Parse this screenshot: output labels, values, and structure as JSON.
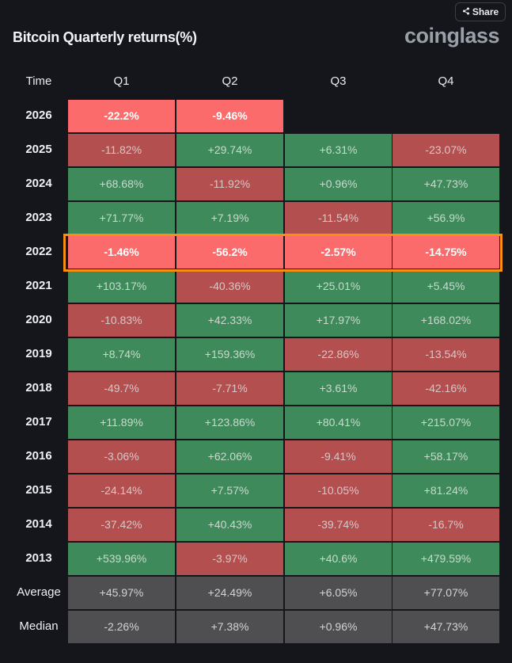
{
  "share": {
    "label": "Share"
  },
  "title": "Bitcoin Quarterly returns(%)",
  "brand": "coinglass",
  "header": [
    "Time",
    "Q1",
    "Q2",
    "Q3",
    "Q4"
  ],
  "rows": [
    {
      "label": "2026",
      "cells": [
        {
          "v": "-22.2%",
          "t": "cur-neg"
        },
        {
          "v": "-9.46%",
          "t": "cur-neg"
        },
        null,
        null
      ]
    },
    {
      "label": "2025",
      "cells": [
        {
          "v": "-11.82%",
          "t": "neg"
        },
        {
          "v": "+29.74%",
          "t": "pos"
        },
        {
          "v": "+6.31%",
          "t": "pos"
        },
        {
          "v": "-23.07%",
          "t": "neg"
        }
      ]
    },
    {
      "label": "2024",
      "cells": [
        {
          "v": "+68.68%",
          "t": "pos"
        },
        {
          "v": "-11.92%",
          "t": "neg"
        },
        {
          "v": "+0.96%",
          "t": "pos"
        },
        {
          "v": "+47.73%",
          "t": "pos"
        }
      ]
    },
    {
      "label": "2023",
      "cells": [
        {
          "v": "+71.77%",
          "t": "pos"
        },
        {
          "v": "+7.19%",
          "t": "pos"
        },
        {
          "v": "-11.54%",
          "t": "neg"
        },
        {
          "v": "+56.9%",
          "t": "pos"
        }
      ]
    },
    {
      "label": "2022",
      "cells": [
        {
          "v": "-1.46%",
          "t": "cur-neg"
        },
        {
          "v": "-56.2%",
          "t": "cur-neg"
        },
        {
          "v": "-2.57%",
          "t": "cur-neg"
        },
        {
          "v": "-14.75%",
          "t": "cur-neg"
        }
      ]
    },
    {
      "label": "2021",
      "cells": [
        {
          "v": "+103.17%",
          "t": "pos"
        },
        {
          "v": "-40.36%",
          "t": "neg"
        },
        {
          "v": "+25.01%",
          "t": "pos"
        },
        {
          "v": "+5.45%",
          "t": "pos"
        }
      ]
    },
    {
      "label": "2020",
      "cells": [
        {
          "v": "-10.83%",
          "t": "neg"
        },
        {
          "v": "+42.33%",
          "t": "pos"
        },
        {
          "v": "+17.97%",
          "t": "pos"
        },
        {
          "v": "+168.02%",
          "t": "pos"
        }
      ]
    },
    {
      "label": "2019",
      "cells": [
        {
          "v": "+8.74%",
          "t": "pos"
        },
        {
          "v": "+159.36%",
          "t": "pos"
        },
        {
          "v": "-22.86%",
          "t": "neg"
        },
        {
          "v": "-13.54%",
          "t": "neg"
        }
      ]
    },
    {
      "label": "2018",
      "cells": [
        {
          "v": "-49.7%",
          "t": "neg"
        },
        {
          "v": "-7.71%",
          "t": "neg"
        },
        {
          "v": "+3.61%",
          "t": "pos"
        },
        {
          "v": "-42.16%",
          "t": "neg"
        }
      ]
    },
    {
      "label": "2017",
      "cells": [
        {
          "v": "+11.89%",
          "t": "pos"
        },
        {
          "v": "+123.86%",
          "t": "pos"
        },
        {
          "v": "+80.41%",
          "t": "pos"
        },
        {
          "v": "+215.07%",
          "t": "pos"
        }
      ]
    },
    {
      "label": "2016",
      "cells": [
        {
          "v": "-3.06%",
          "t": "neg"
        },
        {
          "v": "+62.06%",
          "t": "pos"
        },
        {
          "v": "-9.41%",
          "t": "neg"
        },
        {
          "v": "+58.17%",
          "t": "pos"
        }
      ]
    },
    {
      "label": "2015",
      "cells": [
        {
          "v": "-24.14%",
          "t": "neg"
        },
        {
          "v": "+7.57%",
          "t": "pos"
        },
        {
          "v": "-10.05%",
          "t": "neg"
        },
        {
          "v": "+81.24%",
          "t": "pos"
        }
      ]
    },
    {
      "label": "2014",
      "cells": [
        {
          "v": "-37.42%",
          "t": "neg"
        },
        {
          "v": "+40.43%",
          "t": "pos"
        },
        {
          "v": "-39.74%",
          "t": "neg"
        },
        {
          "v": "-16.7%",
          "t": "neg"
        }
      ]
    },
    {
      "label": "2013",
      "cells": [
        {
          "v": "+539.96%",
          "t": "pos"
        },
        {
          "v": "-3.97%",
          "t": "neg"
        },
        {
          "v": "+40.6%",
          "t": "pos"
        },
        {
          "v": "+479.59%",
          "t": "pos"
        }
      ]
    },
    {
      "label": "Average",
      "cells": [
        {
          "v": "+45.97%",
          "t": "stat"
        },
        {
          "v": "+24.49%",
          "t": "stat"
        },
        {
          "v": "+6.05%",
          "t": "stat"
        },
        {
          "v": "+77.07%",
          "t": "stat"
        }
      ]
    },
    {
      "label": "Median",
      "cells": [
        {
          "v": "-2.26%",
          "t": "stat"
        },
        {
          "v": "+7.38%",
          "t": "stat"
        },
        {
          "v": "+0.96%",
          "t": "stat"
        },
        {
          "v": "+47.73%",
          "t": "stat"
        }
      ]
    }
  ],
  "highlight_row": "2022",
  "colors": {
    "background": "#14161c",
    "positive": "#3f8a5b",
    "negative": "#b44f50",
    "current_negative": "#fb6b6b",
    "stat": "#4f4f51",
    "highlight": "#f68f13",
    "brand": "#9aa0a8"
  },
  "icons": {
    "share": "share-icon"
  }
}
